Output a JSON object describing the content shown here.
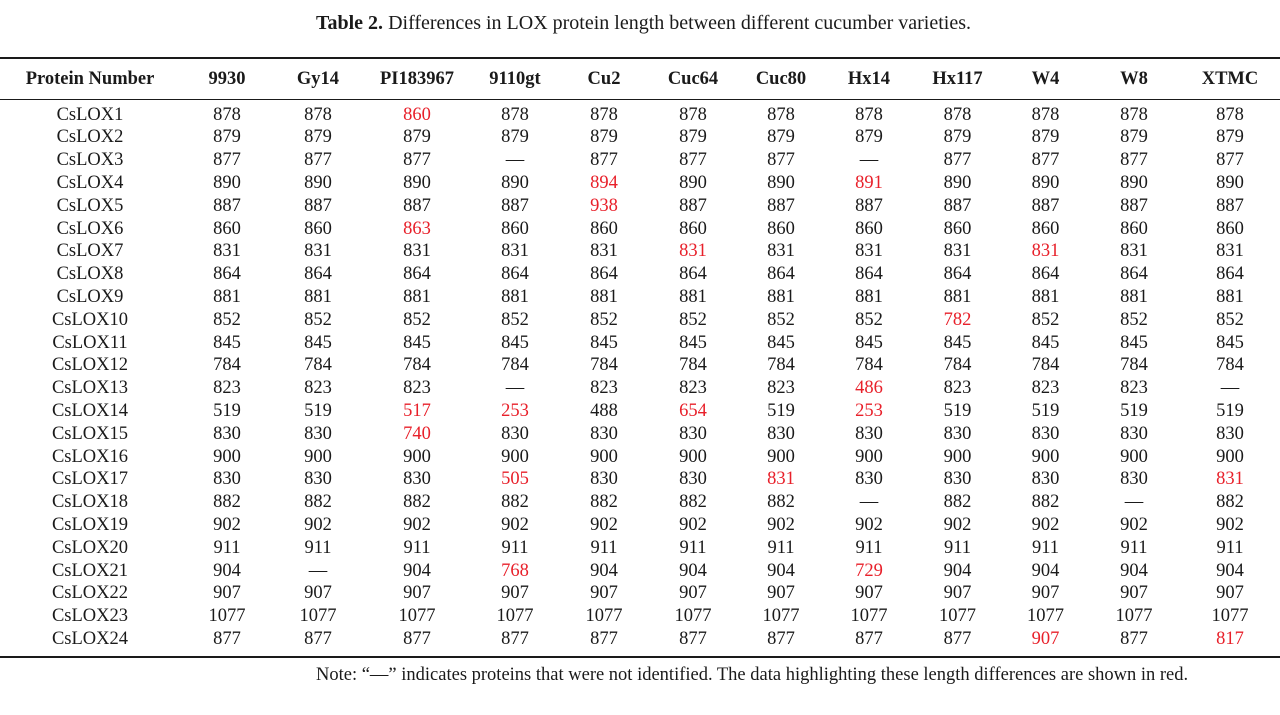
{
  "caption": {
    "label": "Table 2.",
    "text": "Differences in LOX protein length between different cucumber varieties."
  },
  "table": {
    "columns": [
      "Protein Number",
      "9930",
      "Gy14",
      "PI183967",
      "9110gt",
      "Cu2",
      "Cuc64",
      "Cuc80",
      "Hx14",
      "Hx117",
      "W4",
      "W8",
      "XTMC"
    ],
    "rows": [
      [
        "CsLOX1",
        "878",
        "878",
        "860",
        "878",
        "878",
        "878",
        "878",
        "878",
        "878",
        "878",
        "878",
        "878"
      ],
      [
        "CsLOX2",
        "879",
        "879",
        "879",
        "879",
        "879",
        "879",
        "879",
        "879",
        "879",
        "879",
        "879",
        "879"
      ],
      [
        "CsLOX3",
        "877",
        "877",
        "877",
        "—",
        "877",
        "877",
        "877",
        "—",
        "877",
        "877",
        "877",
        "877"
      ],
      [
        "CsLOX4",
        "890",
        "890",
        "890",
        "890",
        "894",
        "890",
        "890",
        "891",
        "890",
        "890",
        "890",
        "890"
      ],
      [
        "CsLOX5",
        "887",
        "887",
        "887",
        "887",
        "938",
        "887",
        "887",
        "887",
        "887",
        "887",
        "887",
        "887"
      ],
      [
        "CsLOX6",
        "860",
        "860",
        "863",
        "860",
        "860",
        "860",
        "860",
        "860",
        "860",
        "860",
        "860",
        "860"
      ],
      [
        "CsLOX7",
        "831",
        "831",
        "831",
        "831",
        "831",
        "831",
        "831",
        "831",
        "831",
        "831",
        "831",
        "831"
      ],
      [
        "CsLOX8",
        "864",
        "864",
        "864",
        "864",
        "864",
        "864",
        "864",
        "864",
        "864",
        "864",
        "864",
        "864"
      ],
      [
        "CsLOX9",
        "881",
        "881",
        "881",
        "881",
        "881",
        "881",
        "881",
        "881",
        "881",
        "881",
        "881",
        "881"
      ],
      [
        "CsLOX10",
        "852",
        "852",
        "852",
        "852",
        "852",
        "852",
        "852",
        "852",
        "782",
        "852",
        "852",
        "852"
      ],
      [
        "CsLOX11",
        "845",
        "845",
        "845",
        "845",
        "845",
        "845",
        "845",
        "845",
        "845",
        "845",
        "845",
        "845"
      ],
      [
        "CsLOX12",
        "784",
        "784",
        "784",
        "784",
        "784",
        "784",
        "784",
        "784",
        "784",
        "784",
        "784",
        "784"
      ],
      [
        "CsLOX13",
        "823",
        "823",
        "823",
        "—",
        "823",
        "823",
        "823",
        "486",
        "823",
        "823",
        "823",
        "—"
      ],
      [
        "CsLOX14",
        "519",
        "519",
        "517",
        "253",
        "488",
        "654",
        "519",
        "253",
        "519",
        "519",
        "519",
        "519"
      ],
      [
        "CsLOX15",
        "830",
        "830",
        "740",
        "830",
        "830",
        "830",
        "830",
        "830",
        "830",
        "830",
        "830",
        "830"
      ],
      [
        "CsLOX16",
        "900",
        "900",
        "900",
        "900",
        "900",
        "900",
        "900",
        "900",
        "900",
        "900",
        "900",
        "900"
      ],
      [
        "CsLOX17",
        "830",
        "830",
        "830",
        "505",
        "830",
        "830",
        "831",
        "830",
        "830",
        "830",
        "830",
        "831"
      ],
      [
        "CsLOX18",
        "882",
        "882",
        "882",
        "882",
        "882",
        "882",
        "882",
        "—",
        "882",
        "882",
        "—",
        "882"
      ],
      [
        "CsLOX19",
        "902",
        "902",
        "902",
        "902",
        "902",
        "902",
        "902",
        "902",
        "902",
        "902",
        "902",
        "902"
      ],
      [
        "CsLOX20",
        "911",
        "911",
        "911",
        "911",
        "911",
        "911",
        "911",
        "911",
        "911",
        "911",
        "911",
        "911"
      ],
      [
        "CsLOX21",
        "904",
        "—",
        "904",
        "768",
        "904",
        "904",
        "904",
        "729",
        "904",
        "904",
        "904",
        "904"
      ],
      [
        "CsLOX22",
        "907",
        "907",
        "907",
        "907",
        "907",
        "907",
        "907",
        "907",
        "907",
        "907",
        "907",
        "907"
      ],
      [
        "CsLOX23",
        "1077",
        "1077",
        "1077",
        "1077",
        "1077",
        "1077",
        "1077",
        "1077",
        "1077",
        "1077",
        "1077",
        "1077"
      ],
      [
        "CsLOX24",
        "877",
        "877",
        "877",
        "877",
        "877",
        "877",
        "877",
        "877",
        "877",
        "907",
        "877",
        "817"
      ]
    ],
    "highlighted": [
      [
        0,
        3
      ],
      [
        3,
        5
      ],
      [
        3,
        8
      ],
      [
        4,
        5
      ],
      [
        5,
        3
      ],
      [
        6,
        6
      ],
      [
        6,
        10
      ],
      [
        9,
        9
      ],
      [
        12,
        8
      ],
      [
        13,
        3
      ],
      [
        13,
        4
      ],
      [
        13,
        6
      ],
      [
        13,
        8
      ],
      [
        14,
        3
      ],
      [
        16,
        4
      ],
      [
        16,
        7
      ],
      [
        16,
        12
      ],
      [
        20,
        4
      ],
      [
        20,
        8
      ],
      [
        23,
        10
      ],
      [
        23,
        12
      ]
    ],
    "highlight_color": "#e8202a"
  },
  "note": "Note: “—” indicates proteins that were not identified. The data highlighting these length differences are shown in red."
}
